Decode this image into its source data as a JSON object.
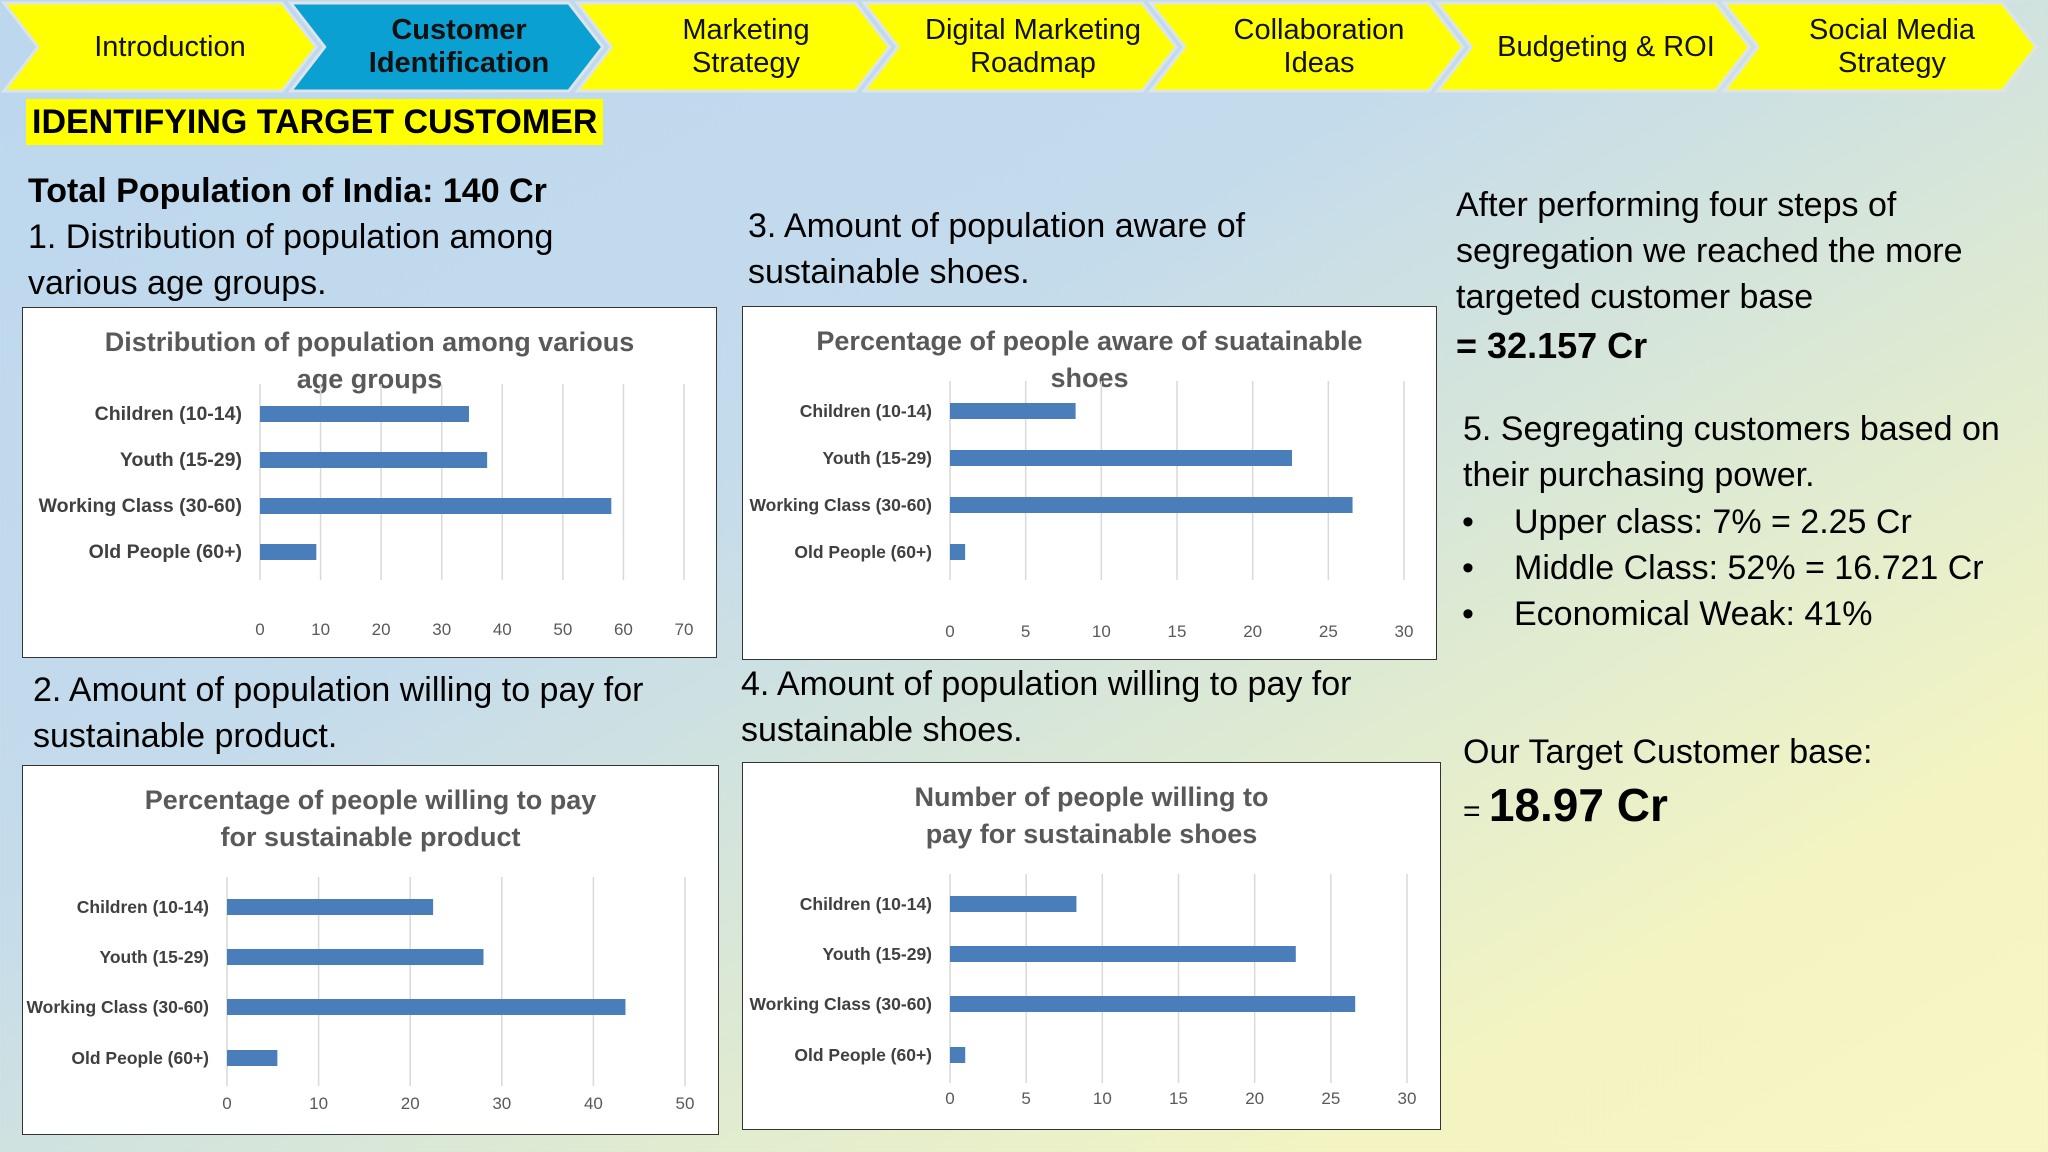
{
  "nav": {
    "tabs": [
      {
        "label": "Introduction",
        "active": false
      },
      {
        "label": "Customer\nIdentification",
        "active": true
      },
      {
        "label": "Marketing\nStrategy",
        "active": false
      },
      {
        "label": "Digital Marketing\nRoadmap",
        "active": false
      },
      {
        "label": "Collaboration\nIdeas",
        "active": false
      },
      {
        "label": "Budgeting & ROI",
        "active": false
      },
      {
        "label": "Social Media\nStrategy",
        "active": false
      }
    ],
    "colors": {
      "inactive": "#ffff00",
      "active": "#0aa0d2",
      "border": "#dde4ea"
    }
  },
  "heading": "IDENTIFYING TARGET CUSTOMER",
  "left": {
    "population": "Total Population of India: 140 Cr",
    "step1": "1.   Distribution of population among various age groups.",
    "step2": "2. Amount of population willing to pay for sustainable product."
  },
  "middle": {
    "step3": "3.  Amount of population aware of sustainable shoes.",
    "step4": "4.  Amount of population willing to pay for sustainable shoes."
  },
  "right": {
    "summary": "After performing four steps of segregation we reached the more targeted customer base",
    "result": "= 32.157 Cr",
    "step5": "5. Segregating customers based on their purchasing power.",
    "bullet_char": "•",
    "bullets": [
      "Upper class: 7% = 2.25 Cr",
      "Middle Class: 52% = 16.721 Cr",
      "Economical Weak: 41%"
    ],
    "target_label": "Our Target Customer base:",
    "target_prefix": "= ",
    "target_value": "18.97 Cr"
  },
  "chart_data": [
    {
      "type": "bar",
      "orientation": "horizontal",
      "title": "Distribution of population among various age groups",
      "categories": [
        "Children (10-14)",
        "Youth (15-29)",
        "Working Class (30-60)",
        "Old People (60+)"
      ],
      "values": [
        34.5,
        37.5,
        58,
        9.3
      ],
      "xlim": [
        0,
        70
      ],
      "xticks": [
        0,
        10,
        20,
        30,
        40,
        50,
        60,
        70
      ],
      "color": "#4a7ebb"
    },
    {
      "type": "bar",
      "orientation": "horizontal",
      "title": "Percentage of people aware of suatainable shoes",
      "categories": [
        "Children (10-14)",
        "Youth (15-29)",
        "Working Class (30-60)",
        "Old People (60+)"
      ],
      "values": [
        8.3,
        22.6,
        26.6,
        1.0
      ],
      "xlim": [
        0,
        30
      ],
      "xticks": [
        0,
        5,
        10,
        15,
        20,
        25,
        30
      ],
      "color": "#4a7ebb"
    },
    {
      "type": "bar",
      "orientation": "horizontal",
      "title": "Percentage of people willing to pay for sustainable product",
      "categories": [
        "Children (10-14)",
        "Youth (15-29)",
        "Working Class (30-60)",
        "Old People (60+)"
      ],
      "values": [
        22.5,
        28,
        43.5,
        5.5
      ],
      "xlim": [
        0,
        50
      ],
      "xticks": [
        0,
        10,
        20,
        30,
        40,
        50
      ],
      "color": "#4a7ebb"
    },
    {
      "type": "bar",
      "orientation": "horizontal",
      "title": "Number of people willing to pay for sustainable shoes",
      "categories": [
        "Children (10-14)",
        "Youth (15-29)",
        "Working Class (30-60)",
        "Old People (60+)"
      ],
      "values": [
        8.3,
        22.7,
        26.6,
        1.0
      ],
      "xlim": [
        0,
        30
      ],
      "xticks": [
        0,
        5,
        10,
        15,
        20,
        25,
        30
      ],
      "color": "#4a7ebb"
    }
  ]
}
